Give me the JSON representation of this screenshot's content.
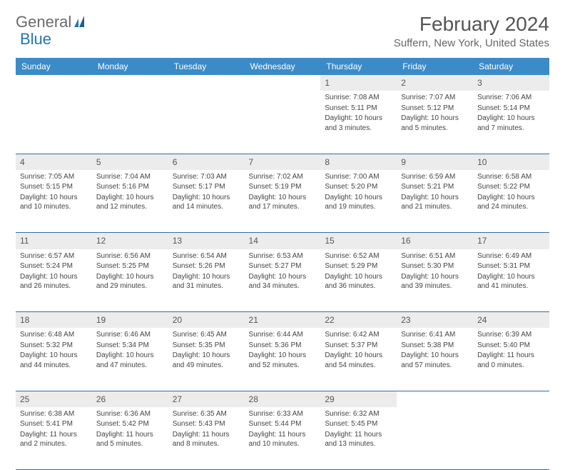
{
  "logo": {
    "part1": "General",
    "part2": "Blue"
  },
  "title": "February 2024",
  "location": "Suffern, New York, United States",
  "colors": {
    "header_bg": "#3b8bc8",
    "header_text": "#ffffff",
    "daynum_bg": "#ececec",
    "row_border": "#2f6ea3",
    "logo_gray": "#6b6b6b",
    "logo_blue": "#2474b5"
  },
  "daysOfWeek": [
    "Sunday",
    "Monday",
    "Tuesday",
    "Wednesday",
    "Thursday",
    "Friday",
    "Saturday"
  ],
  "weeks": [
    [
      null,
      null,
      null,
      null,
      {
        "n": "1",
        "sunrise": "7:08 AM",
        "sunset": "5:11 PM",
        "daylight": "10 hours and 3 minutes."
      },
      {
        "n": "2",
        "sunrise": "7:07 AM",
        "sunset": "5:12 PM",
        "daylight": "10 hours and 5 minutes."
      },
      {
        "n": "3",
        "sunrise": "7:06 AM",
        "sunset": "5:14 PM",
        "daylight": "10 hours and 7 minutes."
      }
    ],
    [
      {
        "n": "4",
        "sunrise": "7:05 AM",
        "sunset": "5:15 PM",
        "daylight": "10 hours and 10 minutes."
      },
      {
        "n": "5",
        "sunrise": "7:04 AM",
        "sunset": "5:16 PM",
        "daylight": "10 hours and 12 minutes."
      },
      {
        "n": "6",
        "sunrise": "7:03 AM",
        "sunset": "5:17 PM",
        "daylight": "10 hours and 14 minutes."
      },
      {
        "n": "7",
        "sunrise": "7:02 AM",
        "sunset": "5:19 PM",
        "daylight": "10 hours and 17 minutes."
      },
      {
        "n": "8",
        "sunrise": "7:00 AM",
        "sunset": "5:20 PM",
        "daylight": "10 hours and 19 minutes."
      },
      {
        "n": "9",
        "sunrise": "6:59 AM",
        "sunset": "5:21 PM",
        "daylight": "10 hours and 21 minutes."
      },
      {
        "n": "10",
        "sunrise": "6:58 AM",
        "sunset": "5:22 PM",
        "daylight": "10 hours and 24 minutes."
      }
    ],
    [
      {
        "n": "11",
        "sunrise": "6:57 AM",
        "sunset": "5:24 PM",
        "daylight": "10 hours and 26 minutes."
      },
      {
        "n": "12",
        "sunrise": "6:56 AM",
        "sunset": "5:25 PM",
        "daylight": "10 hours and 29 minutes."
      },
      {
        "n": "13",
        "sunrise": "6:54 AM",
        "sunset": "5:26 PM",
        "daylight": "10 hours and 31 minutes."
      },
      {
        "n": "14",
        "sunrise": "6:53 AM",
        "sunset": "5:27 PM",
        "daylight": "10 hours and 34 minutes."
      },
      {
        "n": "15",
        "sunrise": "6:52 AM",
        "sunset": "5:29 PM",
        "daylight": "10 hours and 36 minutes."
      },
      {
        "n": "16",
        "sunrise": "6:51 AM",
        "sunset": "5:30 PM",
        "daylight": "10 hours and 39 minutes."
      },
      {
        "n": "17",
        "sunrise": "6:49 AM",
        "sunset": "5:31 PM",
        "daylight": "10 hours and 41 minutes."
      }
    ],
    [
      {
        "n": "18",
        "sunrise": "6:48 AM",
        "sunset": "5:32 PM",
        "daylight": "10 hours and 44 minutes."
      },
      {
        "n": "19",
        "sunrise": "6:46 AM",
        "sunset": "5:34 PM",
        "daylight": "10 hours and 47 minutes."
      },
      {
        "n": "20",
        "sunrise": "6:45 AM",
        "sunset": "5:35 PM",
        "daylight": "10 hours and 49 minutes."
      },
      {
        "n": "21",
        "sunrise": "6:44 AM",
        "sunset": "5:36 PM",
        "daylight": "10 hours and 52 minutes."
      },
      {
        "n": "22",
        "sunrise": "6:42 AM",
        "sunset": "5:37 PM",
        "daylight": "10 hours and 54 minutes."
      },
      {
        "n": "23",
        "sunrise": "6:41 AM",
        "sunset": "5:38 PM",
        "daylight": "10 hours and 57 minutes."
      },
      {
        "n": "24",
        "sunrise": "6:39 AM",
        "sunset": "5:40 PM",
        "daylight": "11 hours and 0 minutes."
      }
    ],
    [
      {
        "n": "25",
        "sunrise": "6:38 AM",
        "sunset": "5:41 PM",
        "daylight": "11 hours and 2 minutes."
      },
      {
        "n": "26",
        "sunrise": "6:36 AM",
        "sunset": "5:42 PM",
        "daylight": "11 hours and 5 minutes."
      },
      {
        "n": "27",
        "sunrise": "6:35 AM",
        "sunset": "5:43 PM",
        "daylight": "11 hours and 8 minutes."
      },
      {
        "n": "28",
        "sunrise": "6:33 AM",
        "sunset": "5:44 PM",
        "daylight": "11 hours and 10 minutes."
      },
      {
        "n": "29",
        "sunrise": "6:32 AM",
        "sunset": "5:45 PM",
        "daylight": "11 hours and 13 minutes."
      },
      null,
      null
    ]
  ],
  "labels": {
    "sunrise": "Sunrise:",
    "sunset": "Sunset:",
    "daylight": "Daylight:"
  }
}
